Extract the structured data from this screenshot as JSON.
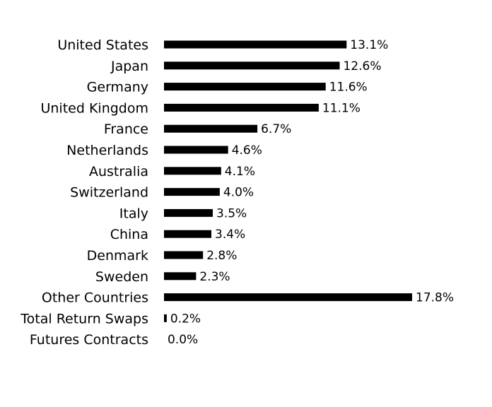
{
  "chart_data": {
    "type": "bar",
    "orientation": "horizontal",
    "title": "",
    "xlabel": "",
    "ylabel": "",
    "categories": [
      "United States",
      "Japan",
      "Germany",
      "United Kingdom",
      "France",
      "Netherlands",
      "Australia",
      "Switzerland",
      "Italy",
      "China",
      "Denmark",
      "Sweden",
      "Other Countries",
      "Total Return Swaps",
      "Futures Contracts"
    ],
    "values": [
      13.1,
      12.6,
      11.6,
      11.1,
      6.7,
      4.6,
      4.1,
      4.0,
      3.5,
      3.4,
      2.8,
      2.3,
      17.8,
      0.2,
      0.0
    ],
    "value_labels": [
      "13.1%",
      "12.6%",
      "11.6%",
      "11.1%",
      "6.7%",
      "4.6%",
      "4.1%",
      "4.0%",
      "3.5%",
      "3.4%",
      "2.8%",
      "2.3%",
      "17.8%",
      "0.2%",
      "0.0%"
    ],
    "xlim": [
      0,
      17.8
    ],
    "grid": false,
    "legend": "none",
    "bar_color": "#000000"
  }
}
